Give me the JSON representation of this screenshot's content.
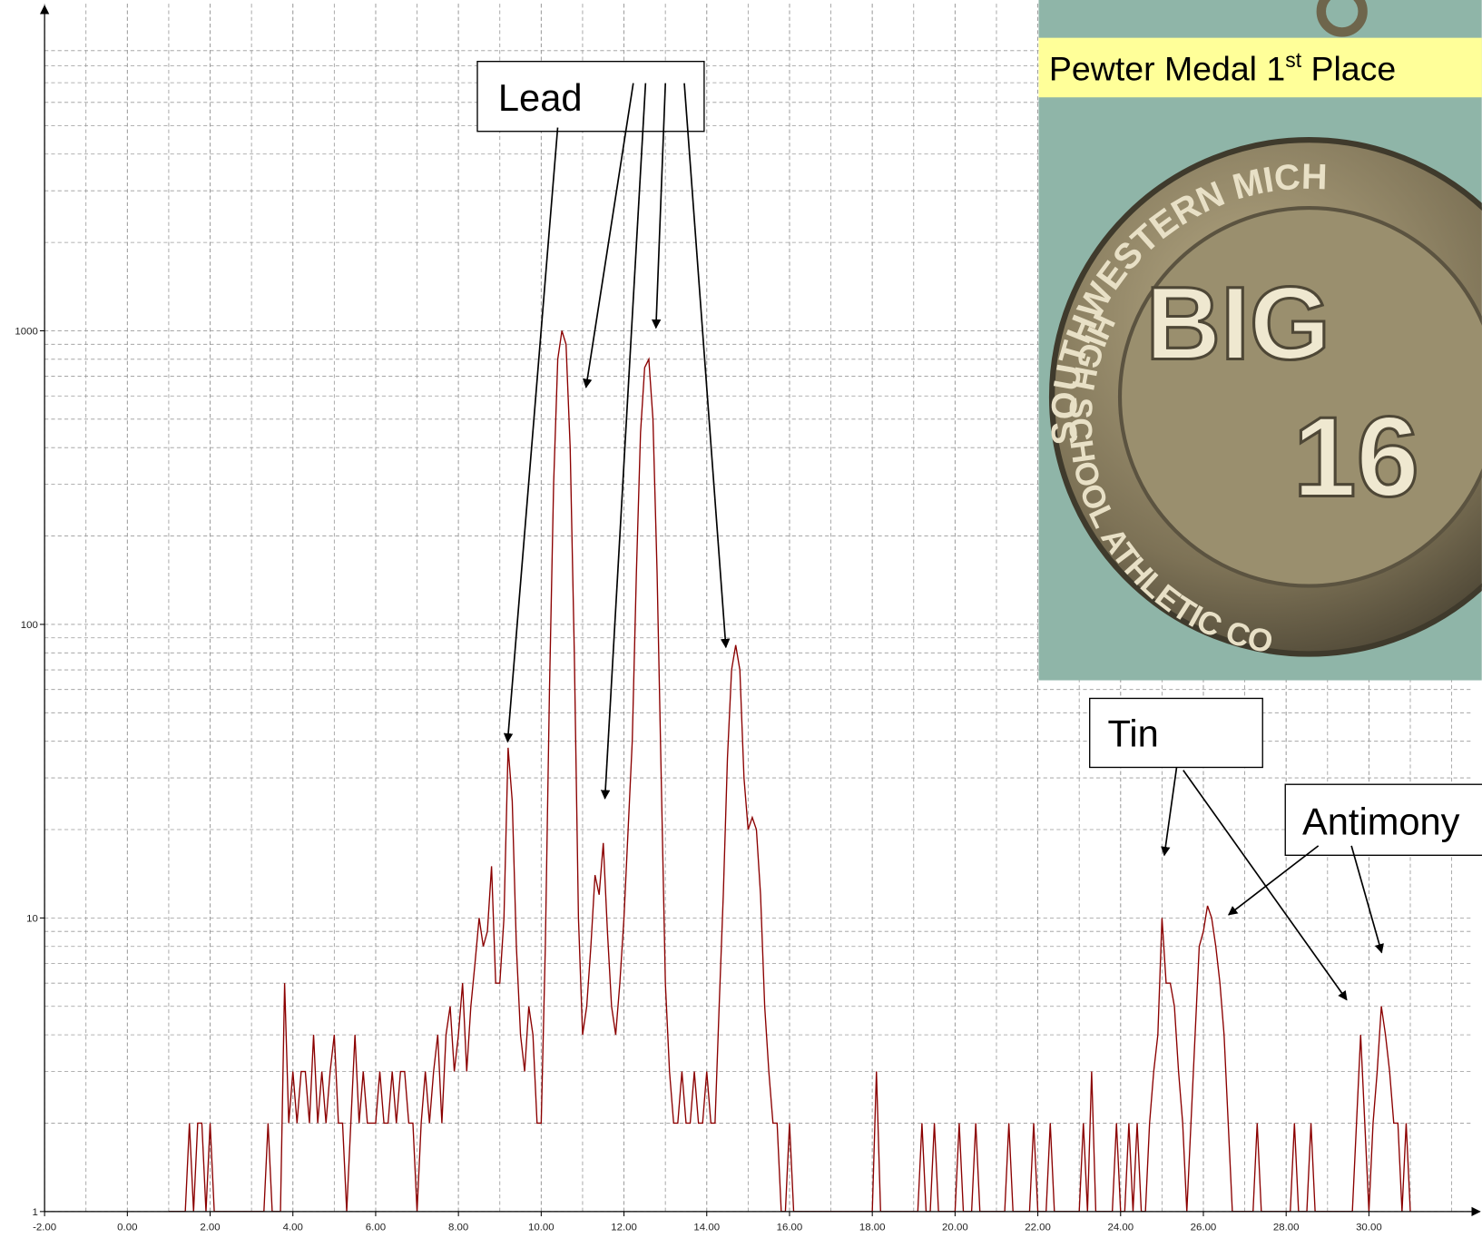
{
  "chart_data": {
    "type": "line",
    "x": [
      1,
      1.1,
      1.2,
      1.3,
      1.4,
      1.5,
      1.6,
      1.7,
      1.8,
      1.9,
      2,
      2.1,
      2.2,
      2.3,
      2.4,
      2.5,
      2.6,
      2.7,
      2.8,
      2.9,
      3,
      3.1,
      3.2,
      3.3,
      3.4,
      3.5,
      3.6,
      3.7,
      3.8,
      3.9,
      4,
      4.1,
      4.2,
      4.3,
      4.4,
      4.5,
      4.6,
      4.7,
      4.8,
      4.9,
      5,
      5.1,
      5.2,
      5.3,
      5.4,
      5.5,
      5.6,
      5.7,
      5.8,
      5.9,
      6,
      6.1,
      6.2,
      6.3,
      6.4,
      6.5,
      6.6,
      6.7,
      6.8,
      6.9,
      7,
      7.1,
      7.2,
      7.3,
      7.4,
      7.5,
      7.6,
      7.7,
      7.8,
      7.9,
      8,
      8.1,
      8.2,
      8.3,
      8.4,
      8.5,
      8.6,
      8.7,
      8.8,
      8.9,
      9,
      9.1,
      9.2,
      9.3,
      9.4,
      9.5,
      9.6,
      9.7,
      9.8,
      9.9,
      10,
      10.1,
      10.2,
      10.3,
      10.4,
      10.5,
      10.6,
      10.7,
      10.8,
      10.9,
      11,
      11.1,
      11.2,
      11.3,
      11.4,
      11.5,
      11.6,
      11.7,
      11.8,
      11.9,
      12,
      12.1,
      12.2,
      12.3,
      12.4,
      12.5,
      12.6,
      12.7,
      12.8,
      12.9,
      13,
      13.1,
      13.2,
      13.3,
      13.4,
      13.5,
      13.6,
      13.7,
      13.8,
      13.9,
      14,
      14.1,
      14.2,
      14.3,
      14.4,
      14.5,
      14.6,
      14.7,
      14.8,
      14.9,
      15,
      15.1,
      15.2,
      15.3,
      15.4,
      15.5,
      15.6,
      15.7,
      15.8,
      15.9,
      16,
      16.1,
      16.2,
      16.3,
      16.4,
      16.5,
      16.6,
      16.7,
      16.8,
      16.9,
      17,
      17.1,
      17.2,
      17.3,
      17.4,
      17.5,
      17.6,
      17.7,
      17.8,
      17.9,
      18,
      18.1,
      18.2,
      18.3,
      18.4,
      18.5,
      18.6,
      18.7,
      18.8,
      18.9,
      19,
      19.1,
      19.2,
      19.3,
      19.4,
      19.5,
      19.6,
      19.7,
      19.8,
      19.9,
      20,
      20.1,
      20.2,
      20.3,
      20.4,
      20.5,
      20.6,
      20.7,
      20.8,
      20.9,
      21,
      21.1,
      21.2,
      21.3,
      21.4,
      21.5,
      21.6,
      21.7,
      21.8,
      21.9,
      22,
      22.1,
      22.2,
      22.3,
      22.4,
      22.5,
      22.6,
      22.7,
      22.8,
      22.9,
      23,
      23.1,
      23.2,
      23.3,
      23.4,
      23.5,
      23.6,
      23.7,
      23.8,
      23.9,
      24,
      24.1,
      24.2,
      24.3,
      24.4,
      24.5,
      24.6,
      24.7,
      24.8,
      24.9,
      25,
      25.1,
      25.2,
      25.3,
      25.4,
      25.5,
      25.6,
      25.7,
      25.8,
      25.9,
      26,
      26.1,
      26.2,
      26.3,
      26.4,
      26.5,
      26.6,
      26.7,
      26.8,
      26.9,
      27,
      27.1,
      27.2,
      27.3,
      27.4,
      27.5,
      27.6,
      27.7,
      27.8,
      27.9,
      28,
      28.1,
      28.2,
      28.3,
      28.4,
      28.5,
      28.6,
      28.7,
      28.8,
      28.9,
      29,
      29.1,
      29.2,
      29.3,
      29.4,
      29.5,
      29.6,
      29.7,
      29.8,
      29.9,
      30,
      30.1,
      30.2,
      30.3,
      30.4,
      30.5,
      30.6,
      30.7,
      30.8,
      30.9,
      31
    ],
    "series": [
      {
        "color": "#8b0000",
        "values": [
          1,
          1,
          1,
          1,
          1,
          2,
          1,
          2,
          2,
          1,
          2,
          1,
          1,
          1,
          1,
          1,
          1,
          1,
          1,
          1,
          1,
          1,
          1,
          1,
          2,
          1,
          1,
          1,
          6,
          2,
          3,
          2,
          3,
          3,
          2,
          4,
          2,
          3,
          2,
          3,
          4,
          2,
          2,
          1,
          2,
          4,
          2,
          3,
          2,
          2,
          2,
          3,
          2,
          2,
          3,
          2,
          3,
          3,
          2,
          2,
          1,
          2,
          3,
          2,
          3,
          4,
          2,
          4,
          5,
          3,
          4,
          6,
          3,
          5,
          7,
          10,
          8,
          9,
          15,
          6,
          6,
          10,
          38,
          25,
          8,
          4,
          3,
          5,
          4,
          2,
          2,
          8,
          60,
          300,
          800,
          1000,
          900,
          400,
          80,
          10,
          4,
          5,
          8,
          14,
          12,
          18,
          9,
          5,
          4,
          6,
          10,
          20,
          40,
          150,
          450,
          750,
          800,
          500,
          150,
          30,
          6,
          3,
          2,
          2,
          3,
          2,
          2,
          3,
          2,
          2,
          3,
          2,
          2,
          5,
          12,
          35,
          70,
          85,
          70,
          30,
          20,
          22,
          20,
          12,
          5,
          3,
          2,
          2,
          1,
          1,
          2,
          1,
          1,
          1,
          1,
          1,
          1,
          1,
          1,
          1,
          1,
          1,
          1,
          1,
          1,
          1,
          1,
          1,
          1,
          1,
          1,
          3,
          1,
          1,
          1,
          1,
          1,
          1,
          1,
          1,
          1,
          1,
          2,
          1,
          1,
          2,
          1,
          1,
          1,
          1,
          1,
          2,
          1,
          1,
          1,
          2,
          1,
          1,
          1,
          1,
          1,
          1,
          1,
          2,
          1,
          1,
          1,
          1,
          1,
          2,
          1,
          1,
          1,
          2,
          1,
          1,
          1,
          1,
          1,
          1,
          1,
          2,
          1,
          3,
          1,
          1,
          1,
          1,
          1,
          2,
          1,
          1,
          2,
          1,
          2,
          1,
          1,
          2,
          3,
          4,
          10,
          6,
          6,
          5,
          3,
          2,
          1,
          2,
          4,
          8,
          9,
          11,
          10,
          8,
          6,
          4,
          2,
          1,
          1,
          1,
          1,
          1,
          1,
          2,
          1,
          1,
          1,
          1,
          1,
          1,
          1,
          1,
          2,
          1,
          1,
          1,
          2,
          1,
          1,
          1,
          1,
          1,
          1,
          1,
          1,
          1,
          1,
          2,
          4,
          2,
          1,
          2,
          3,
          5,
          4,
          3,
          2,
          2,
          1,
          2,
          1
        ]
      }
    ],
    "xlim": [
      -2,
      32.5
    ],
    "xticks": [
      {
        "value": -2,
        "label": "-2.00"
      },
      {
        "value": 0,
        "label": "0.00"
      },
      {
        "value": 2,
        "label": "2.00"
      },
      {
        "value": 4,
        "label": "4.00"
      },
      {
        "value": 6,
        "label": "6.00"
      },
      {
        "value": 8,
        "label": "8.00"
      },
      {
        "value": 10,
        "label": "10.00"
      },
      {
        "value": 12,
        "label": "12.00"
      },
      {
        "value": 14,
        "label": "14.00"
      },
      {
        "value": 16,
        "label": "16.00"
      },
      {
        "value": 18,
        "label": "18.00"
      },
      {
        "value": 20,
        "label": "20.00"
      },
      {
        "value": 22,
        "label": "22.00"
      },
      {
        "value": 24,
        "label": "24.00"
      },
      {
        "value": 26,
        "label": "26.00"
      },
      {
        "value": 28,
        "label": "28.00"
      },
      {
        "value": 30,
        "label": "30.00"
      }
    ],
    "ylim": [
      1,
      13000
    ],
    "yticks": [
      1,
      10,
      100,
      1000
    ],
    "log_y": true,
    "grid": true,
    "annotations": [
      "Lead",
      "Tin",
      "Antimony"
    ],
    "photo": {
      "caption": "Pewter Medal 1",
      "caption_sup": "st",
      "caption_rest": " Place",
      "medal_top": "SOUTHWESTERN MICH",
      "medal_bottom": "HIGH SCHOOL ATHLETIC CO",
      "medal_big": "BIG",
      "medal_num": "16"
    }
  }
}
